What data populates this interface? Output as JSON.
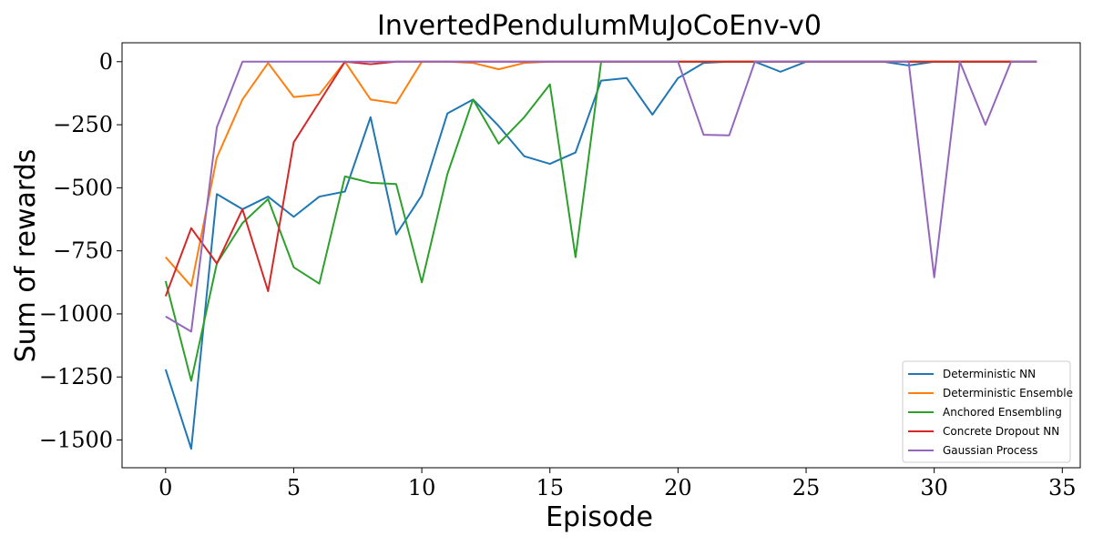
{
  "chart_data": {
    "type": "line",
    "title": "InvertedPendulumMuJoCoEnv-v0",
    "xlabel": "Episode",
    "ylabel": "Sum of rewards",
    "xlim": [
      -1.7,
      35.7
    ],
    "ylim": [
      -1610,
      75
    ],
    "xticks": [
      0,
      5,
      10,
      15,
      20,
      25,
      30,
      35
    ],
    "yticks": [
      0,
      -250,
      -500,
      -750,
      -1000,
      -1250,
      -1500
    ],
    "xtick_labels": [
      "0",
      "5",
      "10",
      "15",
      "20",
      "25",
      "30",
      "35"
    ],
    "ytick_labels": [
      "0",
      "−250",
      "−500",
      "−750",
      "−1000",
      "−1250",
      "−1500"
    ],
    "grid": false,
    "legend_position": "lower-right",
    "x": [
      0,
      1,
      2,
      3,
      4,
      5,
      6,
      7,
      8,
      9,
      10,
      11,
      12,
      13,
      14,
      15,
      16,
      17,
      18,
      19,
      20,
      21,
      22,
      23,
      24,
      25,
      26,
      27,
      28,
      29,
      30,
      31,
      32,
      33,
      34
    ],
    "series": [
      {
        "name": "Deterministic NN",
        "color": "#1f77b4",
        "values": [
          -1220,
          -1535,
          -525,
          -585,
          -535,
          -615,
          -535,
          -515,
          -220,
          -685,
          -530,
          -205,
          -150,
          -255,
          -375,
          -405,
          -360,
          -75,
          -65,
          -210,
          -65,
          -5,
          0,
          0,
          -40,
          0,
          0,
          0,
          0,
          -15,
          0,
          0,
          0,
          0,
          0
        ]
      },
      {
        "name": "Deterministic Ensemble",
        "color": "#ff7f0e",
        "values": [
          -775,
          -890,
          -380,
          -150,
          -5,
          -140,
          -130,
          0,
          -150,
          -165,
          0,
          0,
          -5,
          -30,
          -5,
          0,
          0,
          0,
          0,
          0,
          0,
          0,
          0,
          0,
          0,
          0,
          0,
          0,
          0,
          0,
          0,
          0,
          0,
          0,
          0
        ]
      },
      {
        "name": "Anchored Ensembling",
        "color": "#2ca02c",
        "values": [
          -870,
          -1265,
          -800,
          -640,
          -545,
          -815,
          -880,
          -455,
          -480,
          -485,
          -875,
          -445,
          -150,
          -325,
          -220,
          -90,
          -775,
          0,
          0,
          0,
          0,
          0,
          0,
          0,
          0,
          0,
          0,
          0,
          0,
          0,
          0,
          0,
          0,
          0,
          0
        ]
      },
      {
        "name": "Concrete Dropout NN",
        "color": "#d62728",
        "values": [
          -930,
          -660,
          -800,
          -585,
          -910,
          -320,
          -160,
          0,
          -10,
          0,
          0,
          0,
          0,
          0,
          0,
          0,
          0,
          0,
          0,
          0,
          0,
          0,
          0,
          0,
          0,
          0,
          0,
          0,
          0,
          0,
          0,
          0,
          0,
          0,
          0
        ]
      },
      {
        "name": "Gaussian Process",
        "color": "#9467bd",
        "values": [
          -1010,
          -1070,
          -260,
          0,
          0,
          0,
          0,
          0,
          0,
          0,
          0,
          0,
          0,
          0,
          0,
          0,
          0,
          0,
          0,
          0,
          0,
          -290,
          -292,
          0,
          0,
          0,
          0,
          0,
          0,
          0,
          -855,
          0,
          -250,
          0,
          0
        ]
      }
    ]
  }
}
